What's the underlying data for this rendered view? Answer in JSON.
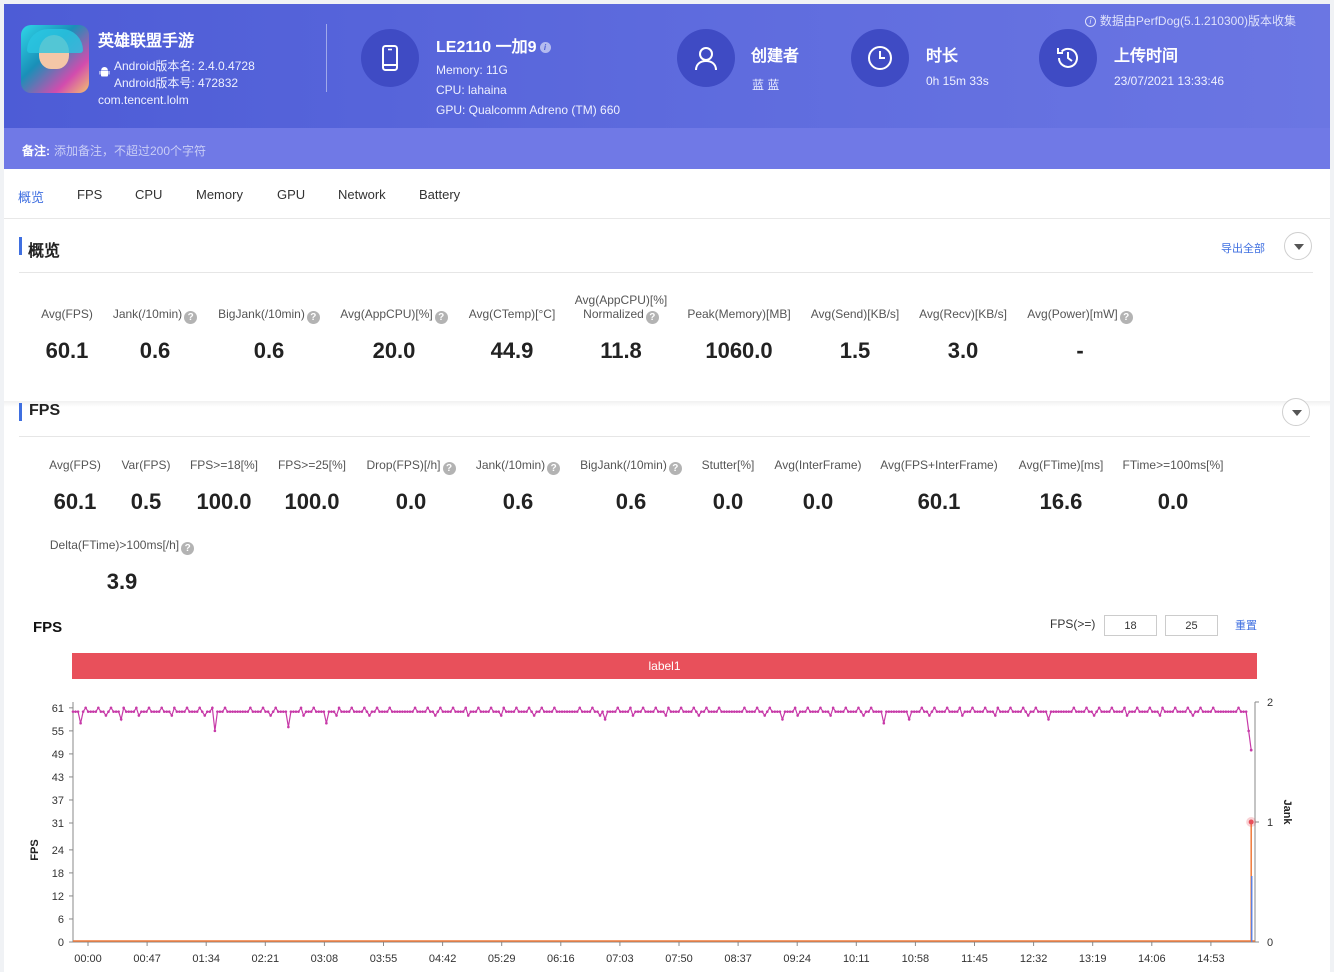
{
  "header": {
    "game_name": "英雄联盟手游",
    "android_version_name": "Android版本名: 2.4.0.4728",
    "android_version_code": "Android版本号: 472832",
    "package": "com.tencent.lolm",
    "device_name": "LE2110 一加9",
    "memory": "Memory: 11G",
    "cpu": "CPU: lahaina",
    "gpu": "GPU: Qualcomm Adreno (TM) 660",
    "creator_label": "创建者",
    "creator_value": "蓝 蓝",
    "duration_label": "时长",
    "duration_value": "0h 15m 33s",
    "upload_label": "上传时间",
    "upload_value": "23/07/2021 13:33:46",
    "perfdog_note": "数据由PerfDog(5.1.210300)版本收集",
    "note_label": "备注:",
    "note_placeholder": "添加备注，不超过200个字符",
    "icons": {
      "device": "phone-icon",
      "creator": "user-icon",
      "duration": "clock-icon",
      "upload": "history-icon",
      "info": "info-icon",
      "android": "android-icon"
    }
  },
  "tabs": [
    {
      "label": "概览",
      "active": true
    },
    {
      "label": "FPS"
    },
    {
      "label": "CPU"
    },
    {
      "label": "Memory"
    },
    {
      "label": "GPU"
    },
    {
      "label": "Network"
    },
    {
      "label": "Battery"
    }
  ],
  "overview": {
    "title": "概览",
    "export_label": "导出全部",
    "metrics": [
      {
        "label": "Avg(FPS)",
        "value": "60.1",
        "help": false
      },
      {
        "label": "Jank(/10min)",
        "value": "0.6",
        "help": true
      },
      {
        "label": "BigJank(/10min)",
        "value": "0.6",
        "help": true
      },
      {
        "label": "Avg(AppCPU)[%]",
        "value": "20.0",
        "help": true
      },
      {
        "label": "Avg(CTemp)[°C]",
        "value": "44.9",
        "help": false
      },
      {
        "label": "Avg(AppCPU)[%]",
        "label2": "Normalized",
        "value": "11.8",
        "help": true
      },
      {
        "label": "Peak(Memory)[MB]",
        "value": "1060.0",
        "help": false
      },
      {
        "label": "Avg(Send)[KB/s]",
        "value": "1.5",
        "help": false
      },
      {
        "label": "Avg(Recv)[KB/s]",
        "value": "3.0",
        "help": false
      },
      {
        "label": "Avg(Power)[mW]",
        "value": "-",
        "help": true
      }
    ]
  },
  "fps_section": {
    "title": "FPS",
    "metrics_row1": [
      {
        "label": "Avg(FPS)",
        "value": "60.1",
        "help": false
      },
      {
        "label": "Var(FPS)",
        "value": "0.5",
        "help": false
      },
      {
        "label": "FPS>=18[%]",
        "value": "100.0",
        "help": false
      },
      {
        "label": "FPS>=25[%]",
        "value": "100.0",
        "help": false
      },
      {
        "label": "Drop(FPS)[/h]",
        "value": "0.0",
        "help": true
      },
      {
        "label": "Jank(/10min)",
        "value": "0.6",
        "help": true
      },
      {
        "label": "BigJank(/10min)",
        "value": "0.6",
        "help": true
      },
      {
        "label": "Stutter[%]",
        "value": "0.0",
        "help": false
      },
      {
        "label": "Avg(InterFrame)",
        "value": "0.0",
        "help": false
      },
      {
        "label": "Avg(FPS+InterFrame)",
        "value": "60.1",
        "help": false
      },
      {
        "label": "Avg(FTime)[ms]",
        "value": "16.6",
        "help": false
      },
      {
        "label": "FTime>=100ms[%]",
        "value": "0.0",
        "help": false
      }
    ],
    "metrics_row2": [
      {
        "label": "Delta(FTime)>100ms[/h]",
        "value": "3.9",
        "help": true
      }
    ],
    "chart_title": "FPS",
    "threshold_label": "FPS(>=)",
    "threshold_1": "18",
    "threshold_2": "25",
    "reset_label": "重置",
    "band_label": "label1"
  },
  "chart_data": {
    "type": "line",
    "title": "FPS",
    "xlabel": "",
    "ylabel": "FPS",
    "y2label": "Jank",
    "ylim": [
      0,
      62
    ],
    "y2lim": [
      0,
      2
    ],
    "y_ticks": [
      0,
      6,
      12,
      18,
      24,
      31,
      37,
      43,
      49,
      55,
      61
    ],
    "y2_ticks": [
      0,
      1,
      2
    ],
    "x_ticks": [
      "00:00",
      "00:47",
      "01:34",
      "02:21",
      "03:08",
      "03:55",
      "04:42",
      "05:29",
      "06:16",
      "07:03",
      "07:50",
      "08:37",
      "09:24",
      "10:11",
      "10:58",
      "11:45",
      "12:32",
      "13:19",
      "14:06",
      "14:53"
    ],
    "duration_seconds": 933,
    "fps_baseline": 60,
    "fps_dips": [
      {
        "t": 6,
        "fps": 57
      },
      {
        "t": 38,
        "fps": 58
      },
      {
        "t": 112,
        "fps": 55
      },
      {
        "t": 170,
        "fps": 56
      },
      {
        "t": 200,
        "fps": 57
      },
      {
        "t": 335,
        "fps": 55
      },
      {
        "t": 420,
        "fps": 58
      },
      {
        "t": 560,
        "fps": 58
      },
      {
        "t": 640,
        "fps": 57
      },
      {
        "t": 660,
        "fps": 58
      },
      {
        "t": 770,
        "fps": 58
      },
      {
        "t": 845,
        "fps": 58
      },
      {
        "t": 928,
        "fps": 55
      },
      {
        "t": 930,
        "fps": 50
      }
    ],
    "jank_events": [
      {
        "t": 930,
        "jank": 1
      }
    ],
    "series": [
      {
        "name": "FPS",
        "color": "#c73aa8"
      },
      {
        "name": "Jank",
        "color": "#f07a3a"
      },
      {
        "name": "BigJank",
        "color": "#5b7fe0"
      }
    ]
  },
  "colors": {
    "header_bg": "#5a67db",
    "accent": "#3f6fe0",
    "band": "#e8505b",
    "fps_line": "#c73aa8",
    "jank_line": "#f07a3a"
  }
}
